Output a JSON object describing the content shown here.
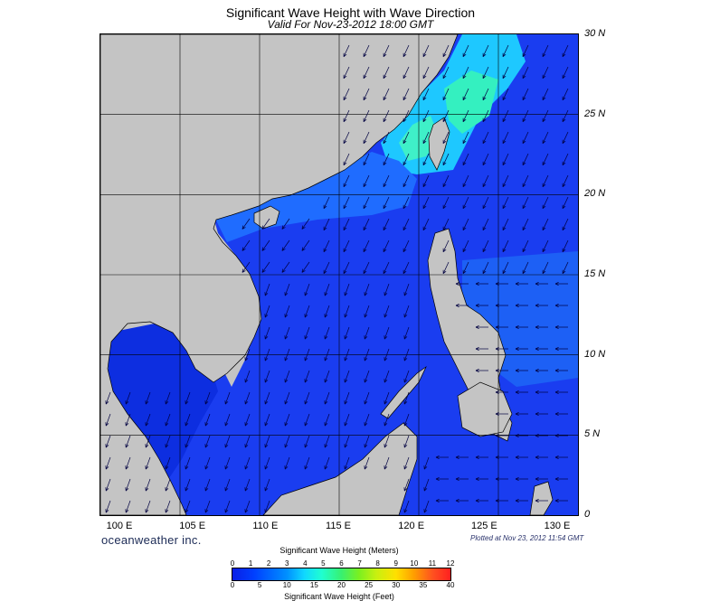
{
  "header": {
    "title": "Significant Wave Height with Wave Direction",
    "subtitle": "Valid For Nov-23-2012 18:00 GMT"
  },
  "map": {
    "lat_labels": [
      "30 N",
      "25 N",
      "20 N",
      "15 N",
      "10 N",
      "5 N",
      "0"
    ],
    "lon_labels": [
      "100 E",
      "105 E",
      "110 E",
      "115 E",
      "120 E",
      "125 E",
      "130 E"
    ],
    "land_color": "#c4c4c4",
    "sea_color_low": "#0a1ee6",
    "sea_color_high": "#30ffb0"
  },
  "footer": {
    "brand": "oceanweather inc.",
    "plotted": "Plotted at Nov 23, 2012 11:54 GMT"
  },
  "legend": {
    "title_meters": "Significant Wave Height (Meters)",
    "title_feet": "Significant Wave Height (Feet)",
    "meters_ticks": [
      "0",
      "1",
      "2",
      "3",
      "4",
      "5",
      "6",
      "7",
      "8",
      "9",
      "10",
      "11",
      "12"
    ],
    "feet_ticks": [
      "0",
      "5",
      "10",
      "15",
      "20",
      "25",
      "30",
      "35",
      "40"
    ]
  }
}
